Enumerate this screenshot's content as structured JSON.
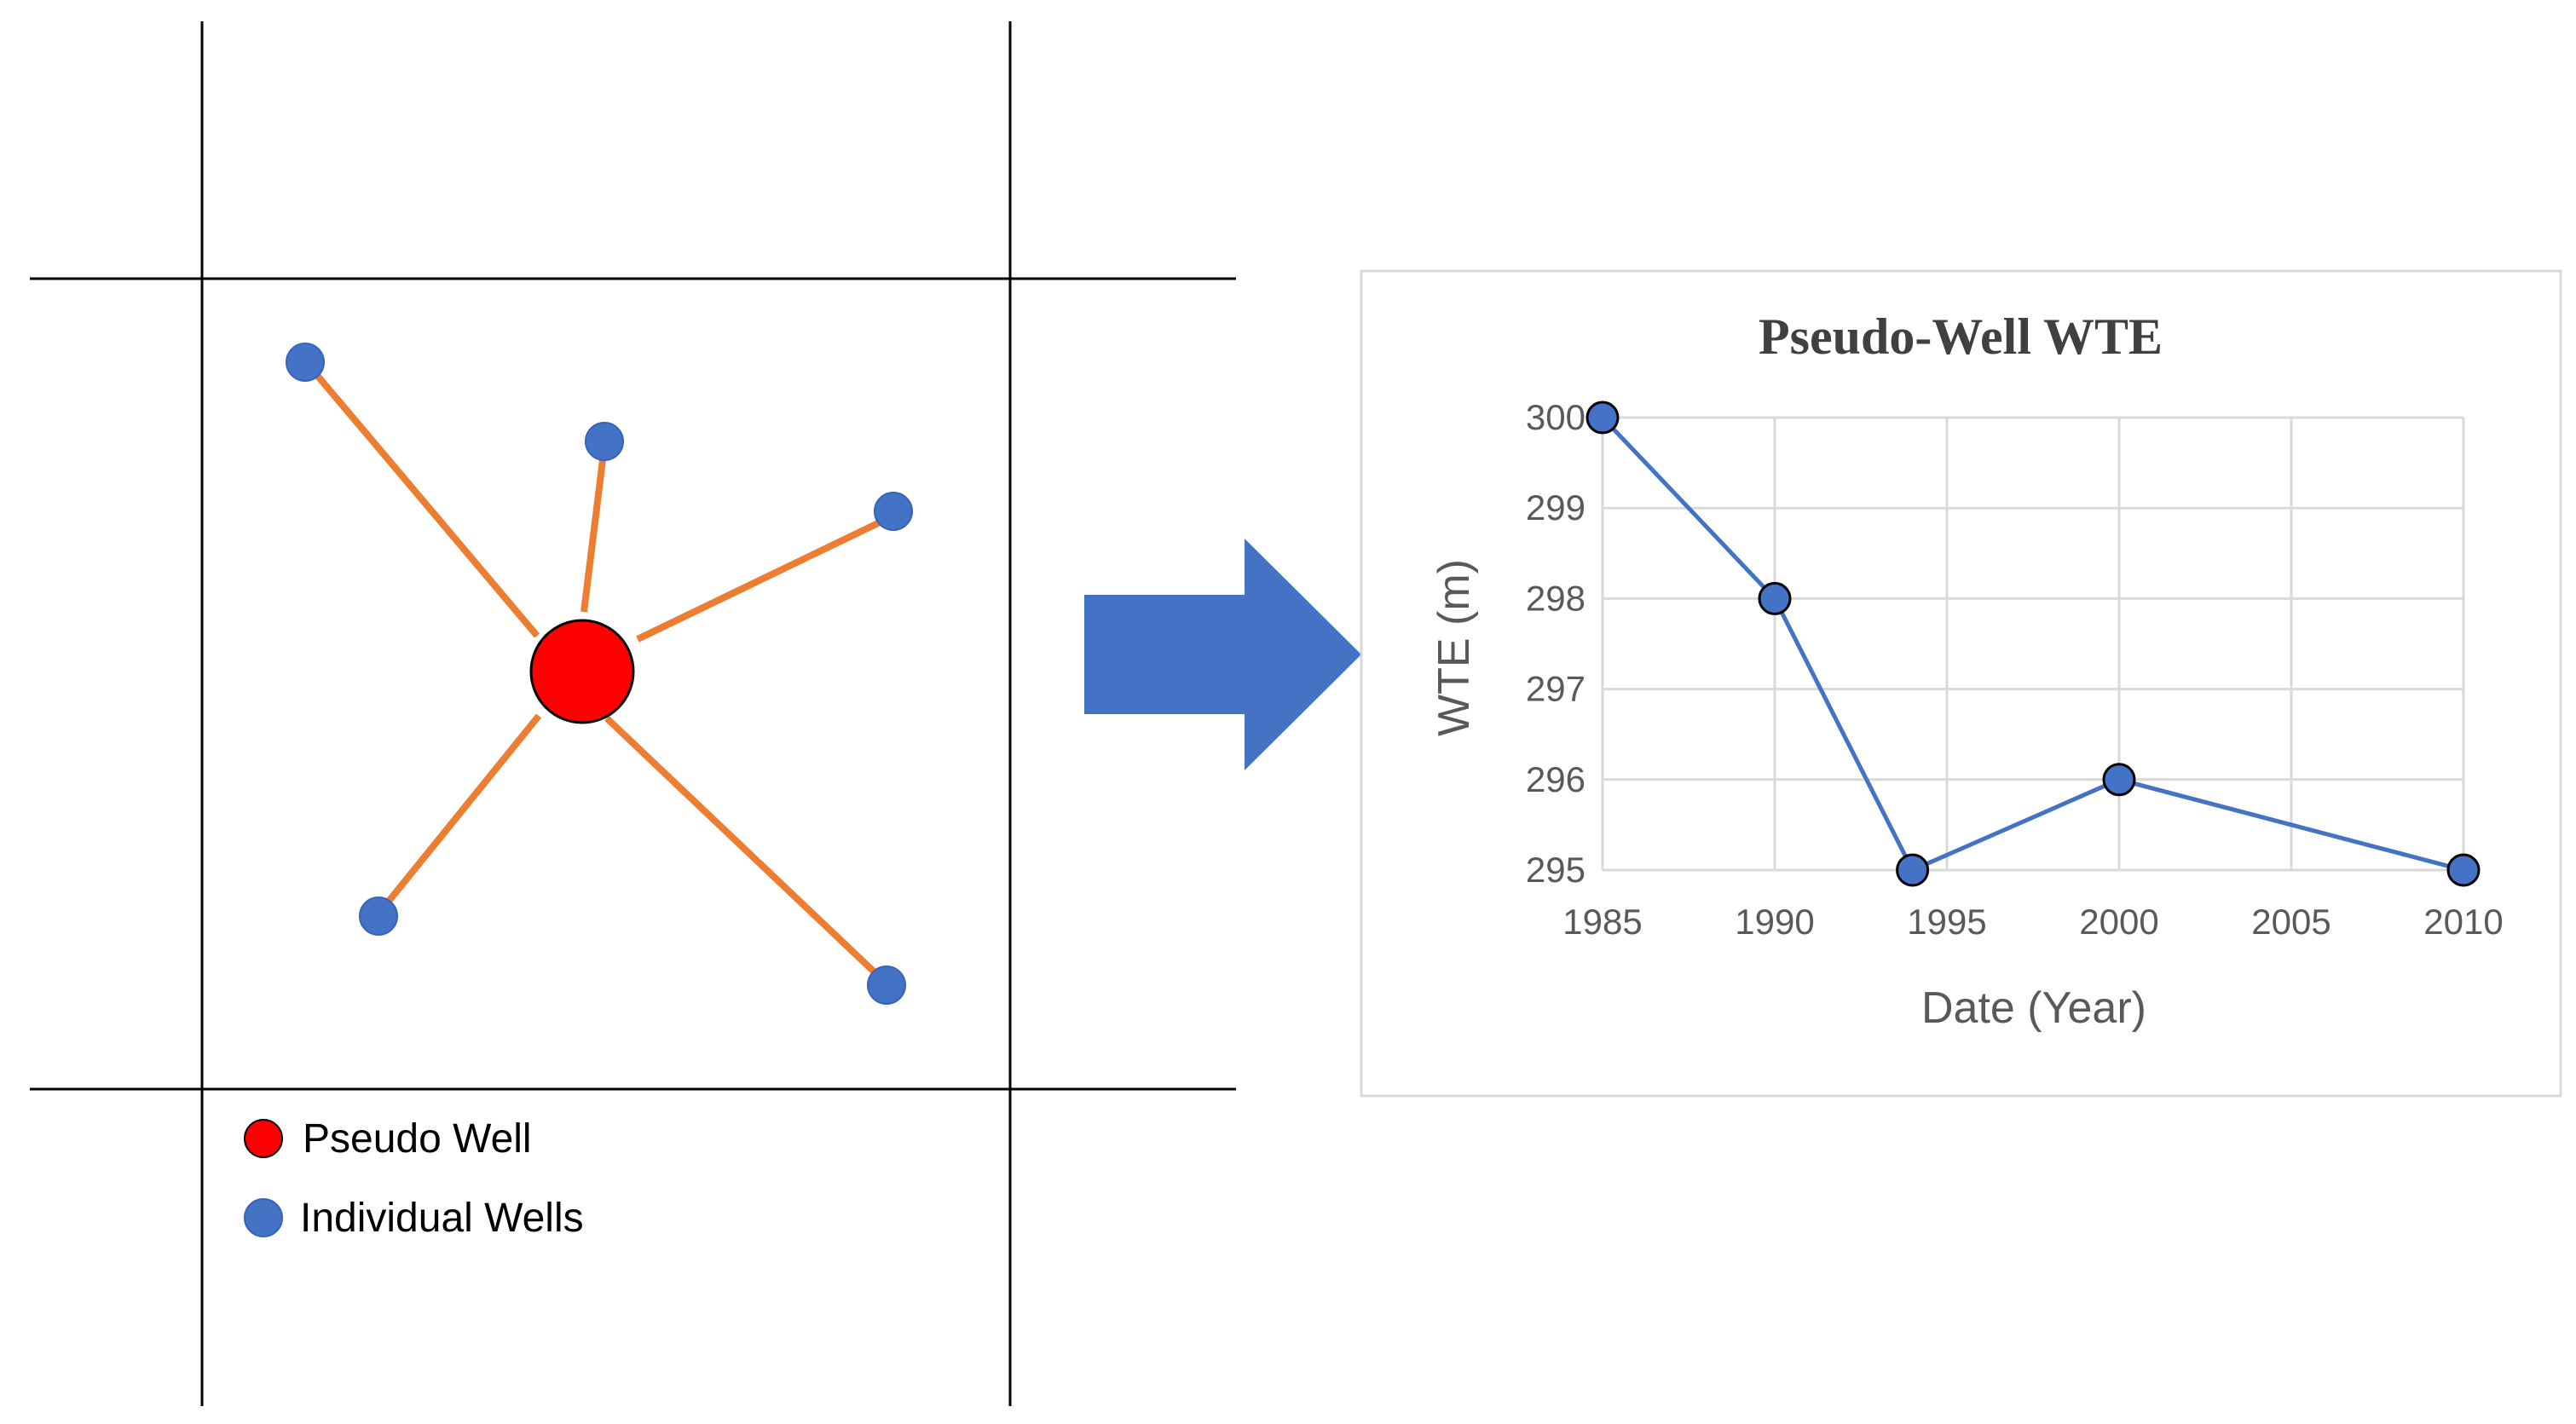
{
  "colors": {
    "pseudo_well": "#ff0000",
    "individual_well": "#4472c4",
    "arrow": "#ed7d31",
    "big_arrow": "#4472c4",
    "grid_line": "#000000",
    "series_line": "#4472c4"
  },
  "legend": {
    "pseudo_well_label": "Pseudo Well",
    "individual_wells_label": "Individual Wells"
  },
  "chart_data": {
    "type": "line",
    "title": "Pseudo-Well WTE",
    "xlabel": "Date (Year)",
    "ylabel": "WTE (m)",
    "xlim": [
      1985,
      2010
    ],
    "ylim": [
      295,
      300
    ],
    "xticks": [
      1985,
      1990,
      1995,
      2000,
      2005,
      2010
    ],
    "yticks": [
      295,
      296,
      297,
      298,
      299,
      300
    ],
    "grid": true,
    "series": [
      {
        "x": [
          1985,
          1990,
          1994,
          2000,
          2010
        ],
        "y": [
          300,
          298,
          295,
          296,
          295
        ]
      }
    ]
  }
}
